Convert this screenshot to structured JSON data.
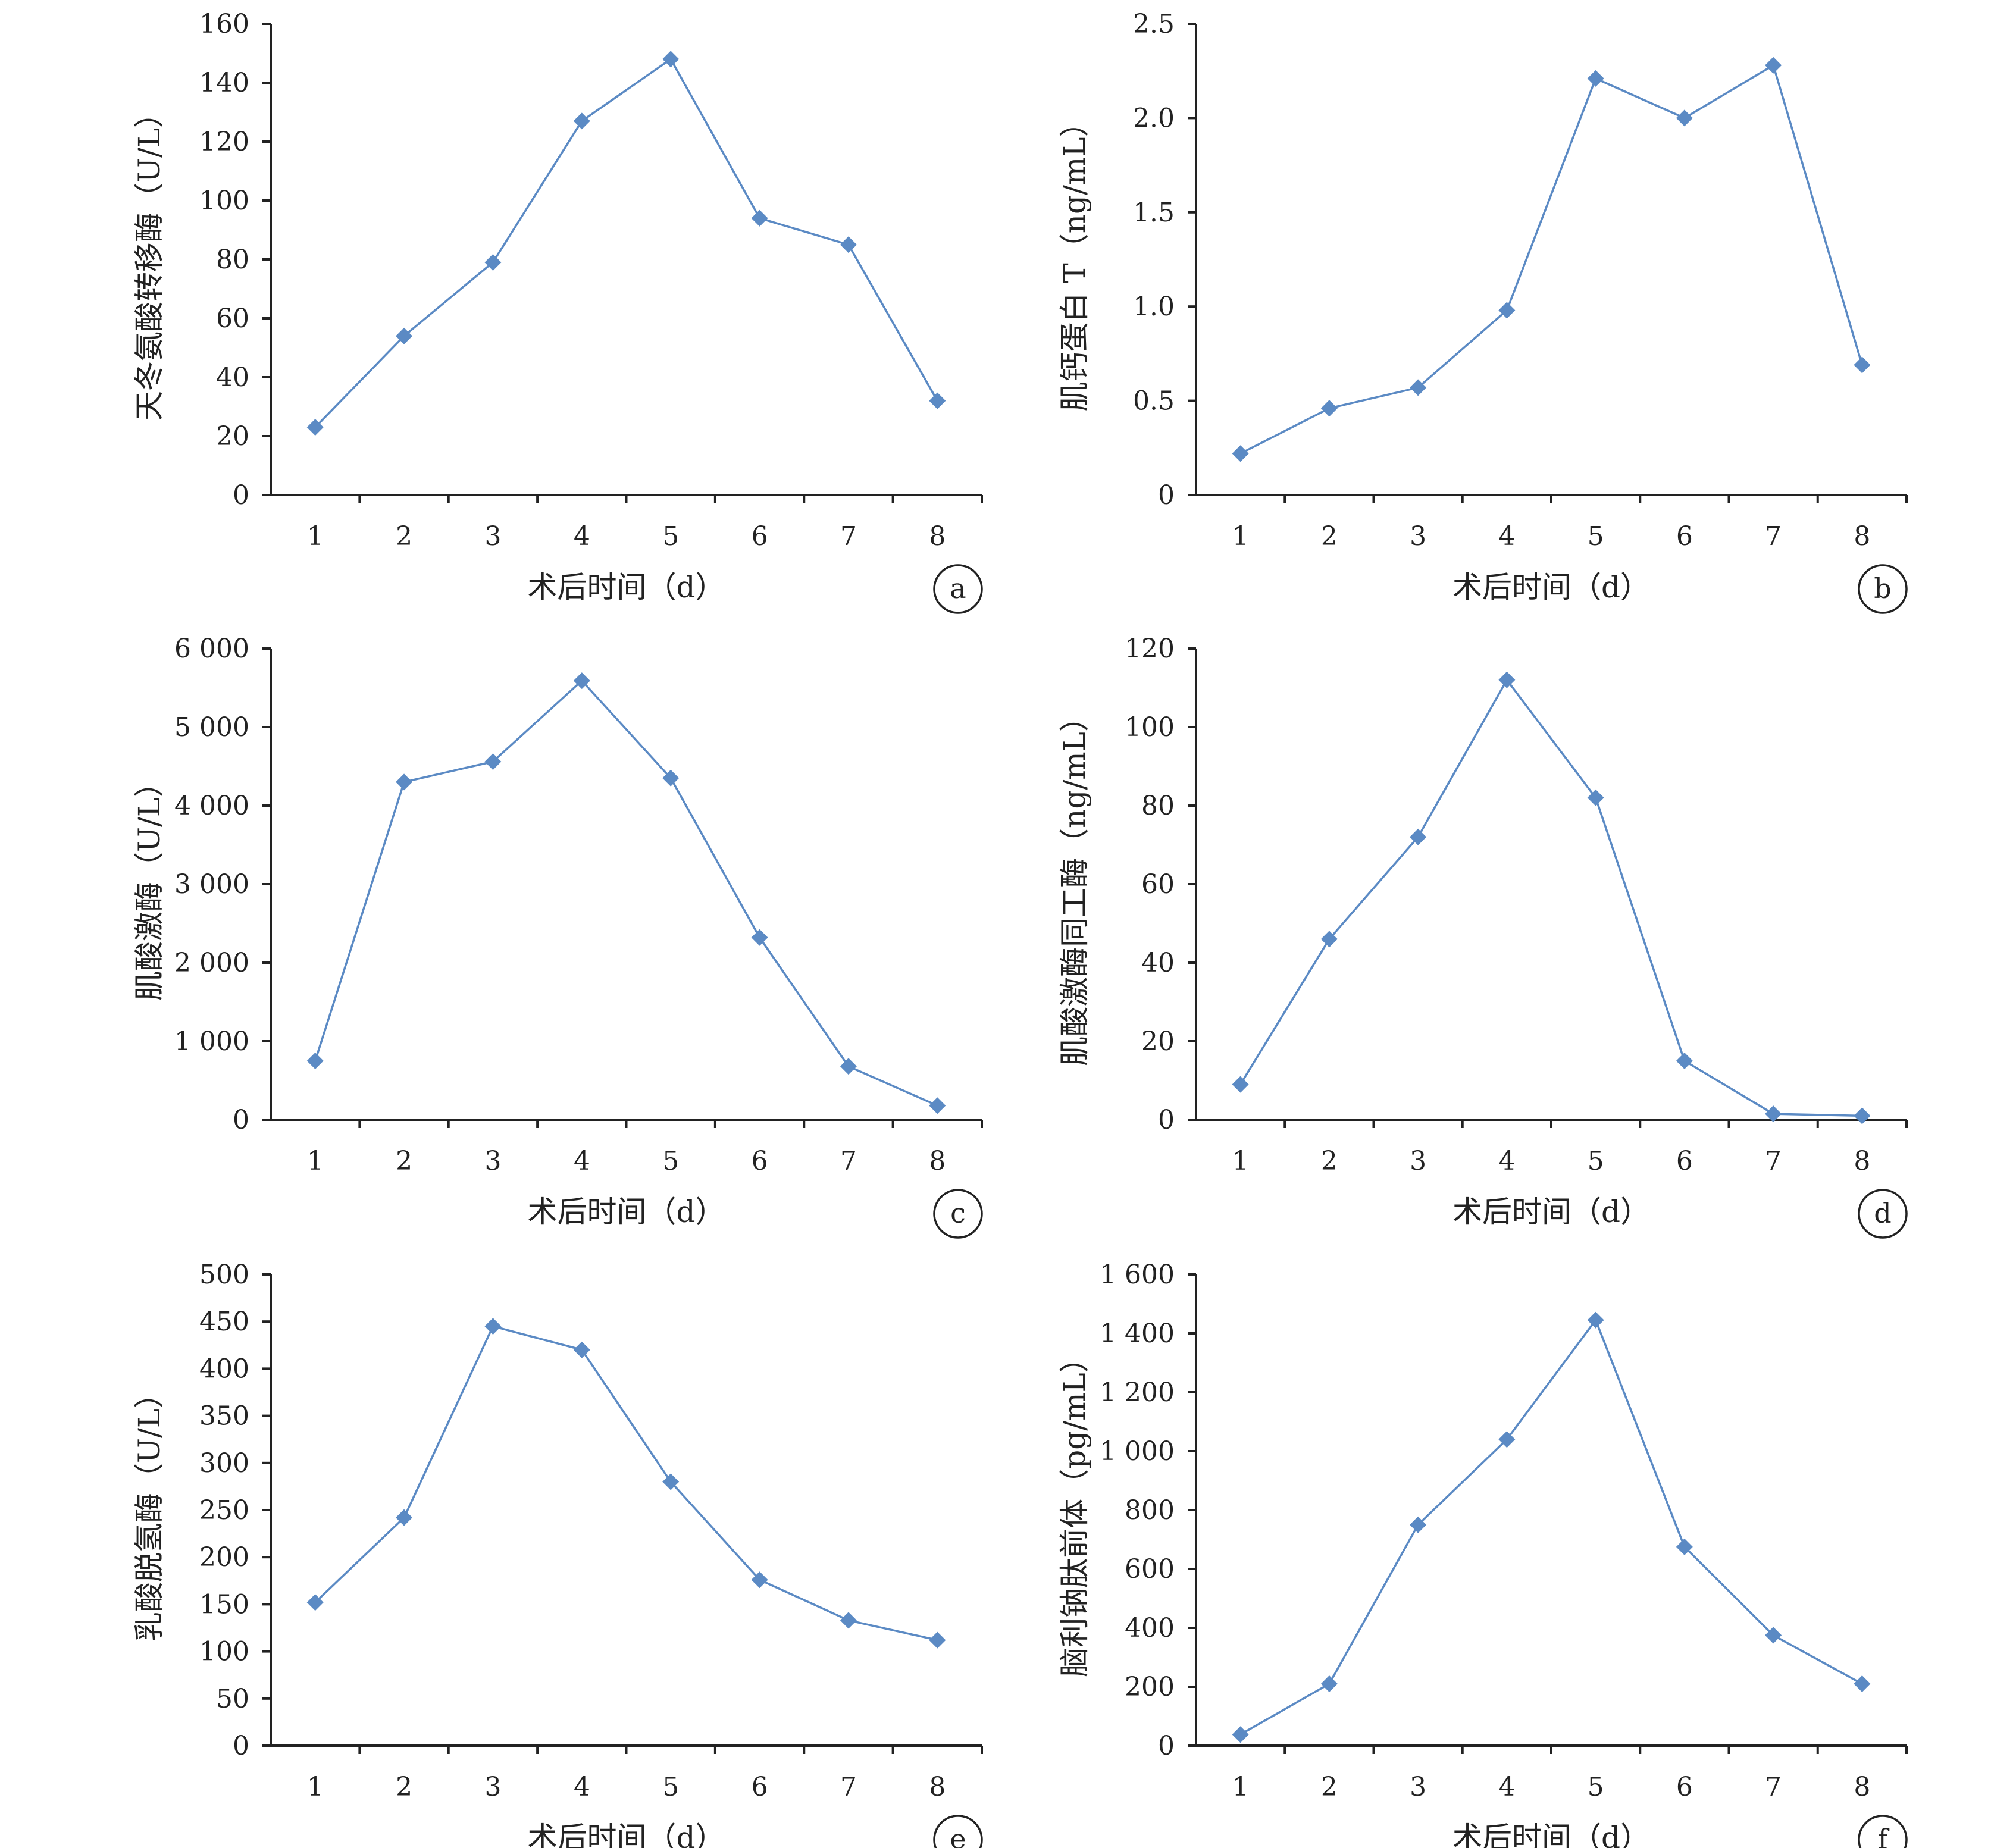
{
  "colors": {
    "series": "#5b8ac4",
    "axis": "#222222"
  },
  "chart_data": [
    {
      "type": "line",
      "panel_label": "a",
      "x": [
        1,
        2,
        3,
        4,
        5,
        6,
        7,
        8
      ],
      "values": [
        23,
        54,
        79,
        127,
        148,
        94,
        85,
        32
      ],
      "xlabel": "术后时间（d）",
      "ylabel": "天冬氨酸转移酶（U/L）",
      "ylim": [
        0,
        160
      ],
      "yticks": [
        "0",
        "20",
        "40",
        "60",
        "80",
        "100",
        "120",
        "140",
        "160"
      ],
      "xticks": [
        "1",
        "2",
        "3",
        "4",
        "5",
        "6",
        "7",
        "8"
      ],
      "marker": "diamond",
      "grid": false
    },
    {
      "type": "line",
      "panel_label": "b",
      "x": [
        1,
        2,
        3,
        4,
        5,
        6,
        7,
        8
      ],
      "values": [
        0.22,
        0.46,
        0.57,
        0.98,
        2.21,
        2.0,
        2.28,
        0.69
      ],
      "xlabel": "术后时间（d）",
      "ylabel": "肌钙蛋白 T（ng/mL）",
      "ylim": [
        0,
        2.5
      ],
      "yticks": [
        "0",
        "0.5",
        "1.0",
        "1.5",
        "2.0",
        "2.5"
      ],
      "xticks": [
        "1",
        "2",
        "3",
        "4",
        "5",
        "6",
        "7",
        "8"
      ],
      "marker": "diamond",
      "grid": false
    },
    {
      "type": "line",
      "panel_label": "c",
      "x": [
        1,
        2,
        3,
        4,
        5,
        6,
        7,
        8
      ],
      "values": [
        750,
        4300,
        4560,
        5590,
        4350,
        2320,
        680,
        180
      ],
      "xlabel": "术后时间（d）",
      "ylabel": "肌酸激酶（U/L）",
      "ylim": [
        0,
        6000
      ],
      "yticks": [
        "0",
        "1 000",
        "2 000",
        "3 000",
        "4 000",
        "5 000",
        "6 000"
      ],
      "xticks": [
        "1",
        "2",
        "3",
        "4",
        "5",
        "6",
        "7",
        "8"
      ],
      "marker": "diamond",
      "grid": false
    },
    {
      "type": "line",
      "panel_label": "d",
      "x": [
        1,
        2,
        3,
        4,
        5,
        6,
        7,
        8
      ],
      "values": [
        9,
        46,
        72,
        112,
        82,
        15,
        1.5,
        1
      ],
      "xlabel": "术后时间（d）",
      "ylabel": "肌酸激酶同工酶（ng/mL）",
      "ylim": [
        0,
        120
      ],
      "yticks": [
        "0",
        "20",
        "40",
        "60",
        "80",
        "100",
        "120"
      ],
      "xticks": [
        "1",
        "2",
        "3",
        "4",
        "5",
        "6",
        "7",
        "8"
      ],
      "marker": "diamond",
      "grid": false
    },
    {
      "type": "line",
      "panel_label": "e",
      "x": [
        1,
        2,
        3,
        4,
        5,
        6,
        7,
        8
      ],
      "values": [
        152,
        242,
        445,
        420,
        280,
        176,
        133,
        112
      ],
      "xlabel": "术后时间（d）",
      "ylabel": "乳酸脱氢酶（U/L）",
      "ylim": [
        0,
        500
      ],
      "yticks": [
        "0",
        "50",
        "100",
        "150",
        "200",
        "250",
        "300",
        "350",
        "400",
        "450",
        "500"
      ],
      "xticks": [
        "1",
        "2",
        "3",
        "4",
        "5",
        "6",
        "7",
        "8"
      ],
      "marker": "diamond",
      "grid": false
    },
    {
      "type": "line",
      "panel_label": "f",
      "x": [
        1,
        2,
        3,
        4,
        5,
        6,
        7,
        8
      ],
      "values": [
        38,
        210,
        750,
        1040,
        1445,
        675,
        375,
        210
      ],
      "xlabel": "术后时间（d）",
      "ylabel": "脑利钠肽前体（pg/mL）",
      "ylim": [
        0,
        1600
      ],
      "yticks": [
        "0",
        "200",
        "400",
        "600",
        "800",
        "1 000",
        "1 200",
        "1 400",
        "1 600"
      ],
      "xticks": [
        "1",
        "2",
        "3",
        "4",
        "5",
        "6",
        "7",
        "8"
      ],
      "marker": "diamond",
      "grid": false
    }
  ]
}
